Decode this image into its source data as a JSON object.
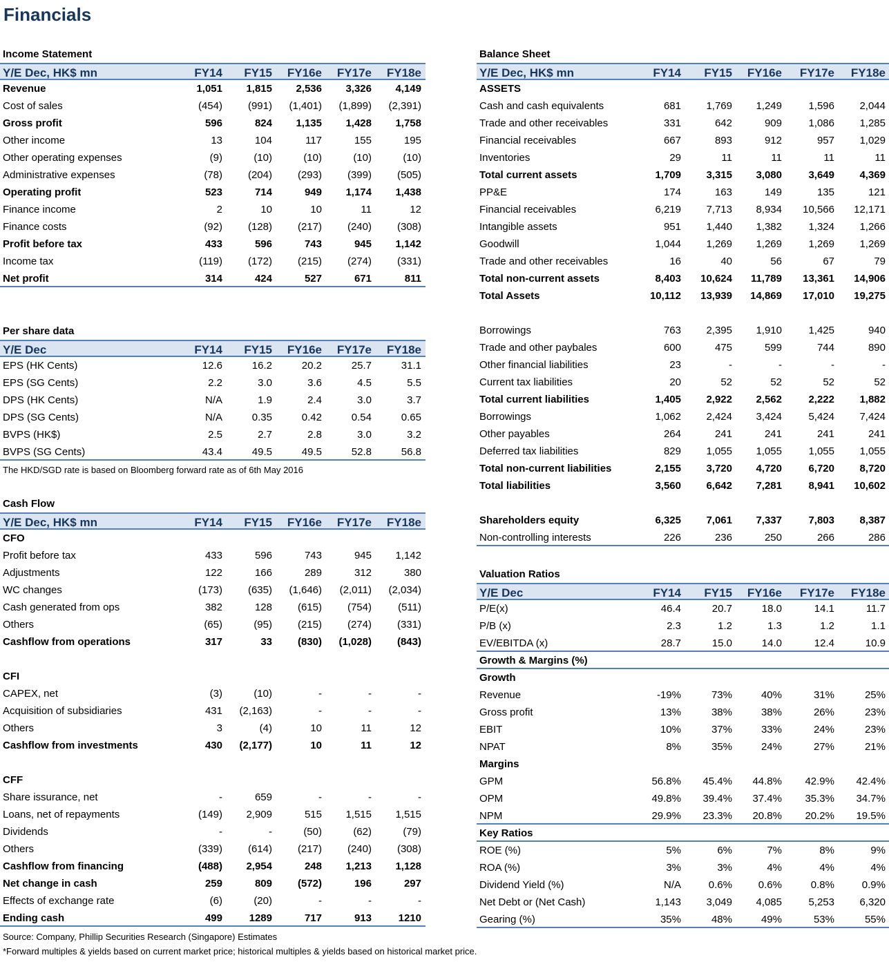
{
  "title": "Financials",
  "income": {
    "section": "Income Statement",
    "header": {
      "label": "Y/E Dec, HK$ mn",
      "cols": [
        "FY14",
        "FY15",
        "FY16e",
        "FY17e",
        "FY18e"
      ]
    },
    "rows": [
      {
        "label": "Revenue",
        "bold": true,
        "vals": [
          "1,051",
          "1,815",
          "2,536",
          "3,326",
          "4,149"
        ]
      },
      {
        "label": "Cost of sales",
        "vals": [
          "(454)",
          "(991)",
          "(1,401)",
          "(1,899)",
          "(2,391)"
        ]
      },
      {
        "label": "Gross profit",
        "bold": true,
        "vals": [
          "596",
          "824",
          "1,135",
          "1,428",
          "1,758"
        ]
      },
      {
        "label": "Other income",
        "vals": [
          "13",
          "104",
          "117",
          "155",
          "195"
        ]
      },
      {
        "label": "Other operating expenses",
        "vals": [
          "(9)",
          "(10)",
          "(10)",
          "(10)",
          "(10)"
        ]
      },
      {
        "label": "Administrative expenses",
        "vals": [
          "(78)",
          "(204)",
          "(293)",
          "(399)",
          "(505)"
        ]
      },
      {
        "label": "Operating profit",
        "bold": true,
        "vals": [
          "523",
          "714",
          "949",
          "1,174",
          "1,438"
        ]
      },
      {
        "label": "Finance income",
        "vals": [
          "2",
          "10",
          "10",
          "11",
          "12"
        ]
      },
      {
        "label": "Finance costs",
        "vals": [
          "(92)",
          "(128)",
          "(217)",
          "(240)",
          "(308)"
        ]
      },
      {
        "label": "Profit before tax",
        "bold": true,
        "vals": [
          "433",
          "596",
          "743",
          "945",
          "1,142"
        ]
      },
      {
        "label": "Income tax",
        "vals": [
          "(119)",
          "(172)",
          "(215)",
          "(274)",
          "(331)"
        ]
      },
      {
        "label": "Net profit",
        "bold": true,
        "line": true,
        "vals": [
          "314",
          "424",
          "527",
          "671",
          "811"
        ]
      }
    ]
  },
  "pershare": {
    "section": "Per share data",
    "header": {
      "label": "Y/E Dec",
      "cols": [
        "FY14",
        "FY15",
        "FY16e",
        "FY17e",
        "FY18e"
      ]
    },
    "rows": [
      {
        "label": "EPS (HK Cents)",
        "vals": [
          "12.6",
          "16.2",
          "20.2",
          "25.7",
          "31.1"
        ]
      },
      {
        "label": "EPS (SG Cents)",
        "vals": [
          "2.2",
          "3.0",
          "3.6",
          "4.5",
          "5.5"
        ]
      },
      {
        "label": "DPS (HK Cents)",
        "vals": [
          "N/A",
          "1.9",
          "2.4",
          "3.0",
          "3.7"
        ]
      },
      {
        "label": "DPS (SG Cents)",
        "vals": [
          "N/A",
          "0.35",
          "0.42",
          "0.54",
          "0.65"
        ]
      },
      {
        "label": "BVPS (HK$)",
        "vals": [
          "2.5",
          "2.7",
          "2.8",
          "3.0",
          "3.2"
        ]
      },
      {
        "label": "BVPS (SG Cents)",
        "line": true,
        "vals": [
          "43.4",
          "49.5",
          "49.5",
          "52.8",
          "56.8"
        ]
      }
    ],
    "note": "The HKD/SGD rate is based on Bloomberg forward rate as of 6th May 2016"
  },
  "cashflow": {
    "section": "Cash Flow",
    "header": {
      "label": "Y/E Dec, HK$ mn",
      "cols": [
        "FY14",
        "FY15",
        "FY16e",
        "FY17e",
        "FY18e"
      ]
    },
    "rows": [
      {
        "label": "CFO",
        "bold": true,
        "vals": []
      },
      {
        "label": "Profit before tax",
        "vals": [
          "433",
          "596",
          "743",
          "945",
          "1,142"
        ]
      },
      {
        "label": "Adjustments",
        "vals": [
          "122",
          "166",
          "289",
          "312",
          "380"
        ]
      },
      {
        "label": "WC changes",
        "vals": [
          "(173)",
          "(635)",
          "(1,646)",
          "(2,011)",
          "(2,034)"
        ]
      },
      {
        "label": "Cash generated from ops",
        "vals": [
          "382",
          "128",
          "(615)",
          "(754)",
          "(511)"
        ]
      },
      {
        "label": "Others",
        "vals": [
          "(65)",
          "(95)",
          "(215)",
          "(274)",
          "(331)"
        ]
      },
      {
        "label": "Cashflow from operations",
        "bold": true,
        "vals": [
          "317",
          "33",
          "(830)",
          "(1,028)",
          "(843)"
        ]
      },
      {
        "label": "",
        "vals": []
      },
      {
        "label": "CFI",
        "bold": true,
        "vals": []
      },
      {
        "label": "CAPEX, net",
        "vals": [
          "(3)",
          "(10)",
          "-",
          "-",
          "-"
        ]
      },
      {
        "label": "Acquisition of subsidiaries",
        "vals": [
          "431",
          "(2,163)",
          "-",
          "-",
          "-"
        ]
      },
      {
        "label": "Others",
        "vals": [
          "3",
          "(4)",
          "10",
          "11",
          "12"
        ]
      },
      {
        "label": "Cashflow from investments",
        "bold": true,
        "vals": [
          "430",
          "(2,177)",
          "10",
          "11",
          "12"
        ]
      },
      {
        "label": "",
        "vals": []
      },
      {
        "label": "CFF",
        "bold": true,
        "vals": []
      },
      {
        "label": "Share issurance, net",
        "vals": [
          "-",
          "659",
          "-",
          "-",
          "-"
        ]
      },
      {
        "label": "Loans, net of repayments",
        "vals": [
          "(149)",
          "2,909",
          "515",
          "1,515",
          "1,515"
        ]
      },
      {
        "label": "Dividends",
        "vals": [
          "-",
          "-",
          "(50)",
          "(62)",
          "(79)"
        ]
      },
      {
        "label": "Others",
        "vals": [
          "(339)",
          "(614)",
          "(217)",
          "(240)",
          "(308)"
        ]
      },
      {
        "label": "Cashflow from financing",
        "bold": true,
        "vals": [
          "(488)",
          "2,954",
          "248",
          "1,213",
          "1,128"
        ]
      },
      {
        "label": "Net change in cash",
        "bold": true,
        "vals": [
          "259",
          "809",
          "(572)",
          "196",
          "297"
        ]
      },
      {
        "label": "Effects of exchange rate",
        "vals": [
          "(6)",
          "(20)",
          "-",
          "-",
          "-"
        ]
      },
      {
        "label": "Ending cash",
        "bold": true,
        "line": true,
        "vals": [
          "499",
          "1289",
          "717",
          "913",
          "1210"
        ]
      }
    ]
  },
  "balance": {
    "section": "Balance Sheet",
    "header": {
      "label": "Y/E Dec, HK$ mn",
      "cols": [
        "FY14",
        "FY15",
        "FY16e",
        "FY17e",
        "FY18e"
      ]
    },
    "rows": [
      {
        "label": "ASSETS",
        "bold": true,
        "vals": []
      },
      {
        "label": "Cash and cash equivalents",
        "vals": [
          "681",
          "1,769",
          "1,249",
          "1,596",
          "2,044"
        ]
      },
      {
        "label": "Trade and other receivables",
        "vals": [
          "331",
          "642",
          "909",
          "1,086",
          "1,285"
        ]
      },
      {
        "label": "Financial receivables",
        "vals": [
          "667",
          "893",
          "912",
          "957",
          "1,029"
        ]
      },
      {
        "label": "Inventories",
        "vals": [
          "29",
          "11",
          "11",
          "11",
          "11"
        ]
      },
      {
        "label": "Total current assets",
        "bold": true,
        "vals": [
          "1,709",
          "3,315",
          "3,080",
          "3,649",
          "4,369"
        ]
      },
      {
        "label": "PP&E",
        "vals": [
          "174",
          "163",
          "149",
          "135",
          "121"
        ]
      },
      {
        "label": "Financial receivables",
        "vals": [
          "6,219",
          "7,713",
          "8,934",
          "10,566",
          "12,171"
        ]
      },
      {
        "label": "Intangible assets",
        "vals": [
          "951",
          "1,440",
          "1,382",
          "1,324",
          "1,266"
        ]
      },
      {
        "label": "Goodwill",
        "vals": [
          "1,044",
          "1,269",
          "1,269",
          "1,269",
          "1,269"
        ]
      },
      {
        "label": "Trade and other receivables",
        "vals": [
          "16",
          "40",
          "56",
          "67",
          "79"
        ]
      },
      {
        "label": "Total non-current assets",
        "bold": true,
        "vals": [
          "8,403",
          "10,624",
          "11,789",
          "13,361",
          "14,906"
        ]
      },
      {
        "label": "Total Assets",
        "bold": true,
        "vals": [
          "10,112",
          "13,939",
          "14,869",
          "17,010",
          "19,275"
        ]
      },
      {
        "label": "",
        "vals": []
      },
      {
        "label": "Borrowings",
        "vals": [
          "763",
          "2,395",
          "1,910",
          "1,425",
          "940"
        ]
      },
      {
        "label": "Trade and other paybales",
        "vals": [
          "600",
          "475",
          "599",
          "744",
          "890"
        ]
      },
      {
        "label": "Other financial liabilities",
        "vals": [
          "23",
          "-",
          "-",
          "-",
          "-"
        ]
      },
      {
        "label": "Current tax liabilities",
        "vals": [
          "20",
          "52",
          "52",
          "52",
          "52"
        ]
      },
      {
        "label": "Total current liabilities",
        "bold": true,
        "vals": [
          "1,405",
          "2,922",
          "2,562",
          "2,222",
          "1,882"
        ]
      },
      {
        "label": "Borrowings",
        "vals": [
          "1,062",
          "2,424",
          "3,424",
          "5,424",
          "7,424"
        ]
      },
      {
        "label": "Other payables",
        "vals": [
          "264",
          "241",
          "241",
          "241",
          "241"
        ]
      },
      {
        "label": "Deferred tax liabilities",
        "vals": [
          "829",
          "1,055",
          "1,055",
          "1,055",
          "1,055"
        ]
      },
      {
        "label": "Total non-current liabilities",
        "bold": true,
        "vals": [
          "2,155",
          "3,720",
          "4,720",
          "6,720",
          "8,720"
        ]
      },
      {
        "label": "Total liabilities",
        "bold": true,
        "vals": [
          "3,560",
          "6,642",
          "7,281",
          "8,941",
          "10,602"
        ]
      },
      {
        "label": "",
        "vals": []
      },
      {
        "label": "Shareholders equity",
        "bold": true,
        "vals": [
          "6,325",
          "7,061",
          "7,337",
          "7,803",
          "8,387"
        ]
      },
      {
        "label": "Non-controlling interests",
        "line": true,
        "vals": [
          "226",
          "236",
          "250",
          "266",
          "286"
        ]
      }
    ]
  },
  "valuation": {
    "section": "Valuation Ratios",
    "header": {
      "label": "Y/E Dec",
      "cols": [
        "FY14",
        "FY15",
        "FY16e",
        "FY17e",
        "FY18e"
      ]
    },
    "rows": [
      {
        "label": "P/E(x)",
        "vals": [
          "46.4",
          "20.7",
          "18.0",
          "14.1",
          "11.7"
        ]
      },
      {
        "label": "P/B (x)",
        "vals": [
          "2.3",
          "1.2",
          "1.3",
          "1.2",
          "1.1"
        ]
      },
      {
        "label": "EV/EBITDA (x)",
        "line": true,
        "vals": [
          "28.7",
          "15.0",
          "14.0",
          "12.4",
          "10.9"
        ]
      },
      {
        "label": "Growth & Margins (%)",
        "bold": true,
        "line": true,
        "vals": []
      },
      {
        "label": "Growth",
        "bold": true,
        "vals": []
      },
      {
        "label": "Revenue",
        "vals": [
          "-19%",
          "73%",
          "40%",
          "31%",
          "25%"
        ]
      },
      {
        "label": "Gross profit",
        "vals": [
          "13%",
          "38%",
          "38%",
          "26%",
          "23%"
        ]
      },
      {
        "label": "EBIT",
        "vals": [
          "10%",
          "37%",
          "33%",
          "24%",
          "23%"
        ]
      },
      {
        "label": "NPAT",
        "vals": [
          "8%",
          "35%",
          "24%",
          "27%",
          "21%"
        ]
      },
      {
        "label": "Margins",
        "bold": true,
        "vals": []
      },
      {
        "label": "GPM",
        "vals": [
          "56.8%",
          "45.4%",
          "44.8%",
          "42.9%",
          "42.4%"
        ]
      },
      {
        "label": "OPM",
        "vals": [
          "49.8%",
          "39.4%",
          "37.4%",
          "35.3%",
          "34.7%"
        ]
      },
      {
        "label": "NPM",
        "line": true,
        "vals": [
          "29.9%",
          "23.3%",
          "20.8%",
          "20.2%",
          "19.5%"
        ]
      },
      {
        "label": "Key Ratios",
        "bold": true,
        "line": true,
        "vals": []
      },
      {
        "label": "ROE (%)",
        "vals": [
          "5%",
          "6%",
          "7%",
          "8%",
          "9%"
        ]
      },
      {
        "label": "ROA (%)",
        "vals": [
          "3%",
          "3%",
          "4%",
          "4%",
          "4%"
        ]
      },
      {
        "label": "Dividend Yield (%)",
        "vals": [
          "N/A",
          "0.6%",
          "0.6%",
          "0.8%",
          "0.9%"
        ]
      },
      {
        "label": "Net Debt or (Net Cash)",
        "vals": [
          "1,143",
          "3,049",
          "4,085",
          "5,253",
          "6,320"
        ]
      },
      {
        "label": "Gearing (%)",
        "line": true,
        "vals": [
          "35%",
          "48%",
          "49%",
          "53%",
          "55%"
        ]
      }
    ]
  },
  "footnotes": [
    "Source: Company, Phillip Securities Research (Singapore) Estimates",
    "*Forward multiples & yields based on current market price; historical multiples & yields based on historical market price."
  ],
  "colors": {
    "header_bg": "#dbe5f1",
    "rule": "#4f81bd",
    "title": "#17365d"
  }
}
